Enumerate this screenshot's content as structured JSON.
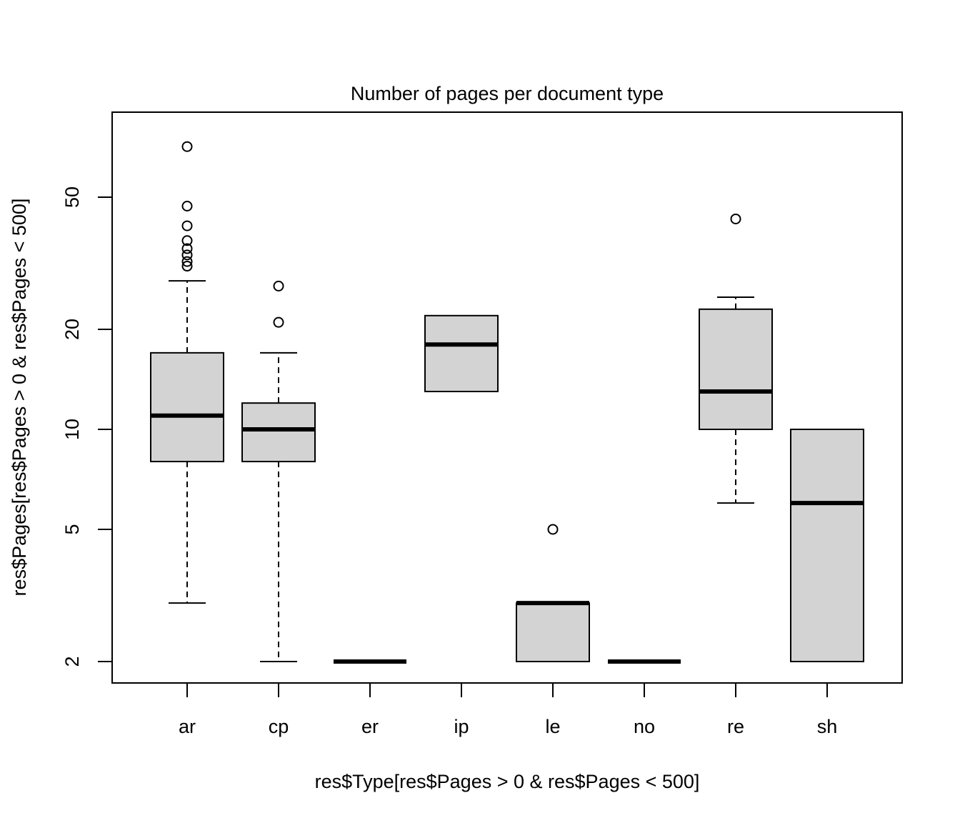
{
  "chart_data": {
    "type": "boxplot",
    "title": "Number of pages per document type",
    "xlabel": "res$Type[res$Pages > 0 & res$Pages < 500]",
    "ylabel": "res$Pages[res$Pages > 0 & res$Pages < 500]",
    "y_scale": "log",
    "ylim": [
      1.8,
      80
    ],
    "yticks": [
      2,
      5,
      10,
      20,
      50
    ],
    "grid": false,
    "legend": "none",
    "colors": {
      "box_fill": "#d3d3d3",
      "stroke": "#000000"
    },
    "categories": [
      "ar",
      "cp",
      "er",
      "ip",
      "le",
      "no",
      "re",
      "sh"
    ],
    "boxes": [
      {
        "category": "ar",
        "whisker_low": 3,
        "q1": 8,
        "median": 11,
        "q3": 17,
        "whisker_high": 28,
        "outliers": [
          71,
          47,
          41,
          37,
          35,
          33.5,
          32,
          31
        ]
      },
      {
        "category": "cp",
        "whisker_low": 2,
        "q1": 8,
        "median": 10,
        "q3": 12,
        "whisker_high": 17,
        "outliers": [
          27,
          21
        ]
      },
      {
        "category": "er",
        "whisker_low": 2,
        "q1": 2,
        "median": 2,
        "q3": 2,
        "whisker_high": 2,
        "outliers": []
      },
      {
        "category": "ip",
        "whisker_low": 13,
        "q1": 13,
        "median": 18,
        "q3": 22,
        "whisker_high": 22,
        "outliers": []
      },
      {
        "category": "le",
        "whisker_low": 2,
        "q1": 2,
        "median": 3,
        "q3": 3,
        "whisker_high": 3,
        "outliers": [
          5
        ]
      },
      {
        "category": "no",
        "whisker_low": 2,
        "q1": 2,
        "median": 2,
        "q3": 2,
        "whisker_high": 2,
        "outliers": []
      },
      {
        "category": "re",
        "whisker_low": 6,
        "q1": 10,
        "median": 13,
        "q3": 23,
        "whisker_high": 25,
        "outliers": [
          43
        ]
      },
      {
        "category": "sh",
        "whisker_low": 2,
        "q1": 2,
        "median": 6,
        "q3": 10,
        "whisker_high": 10,
        "outliers": []
      }
    ]
  }
}
